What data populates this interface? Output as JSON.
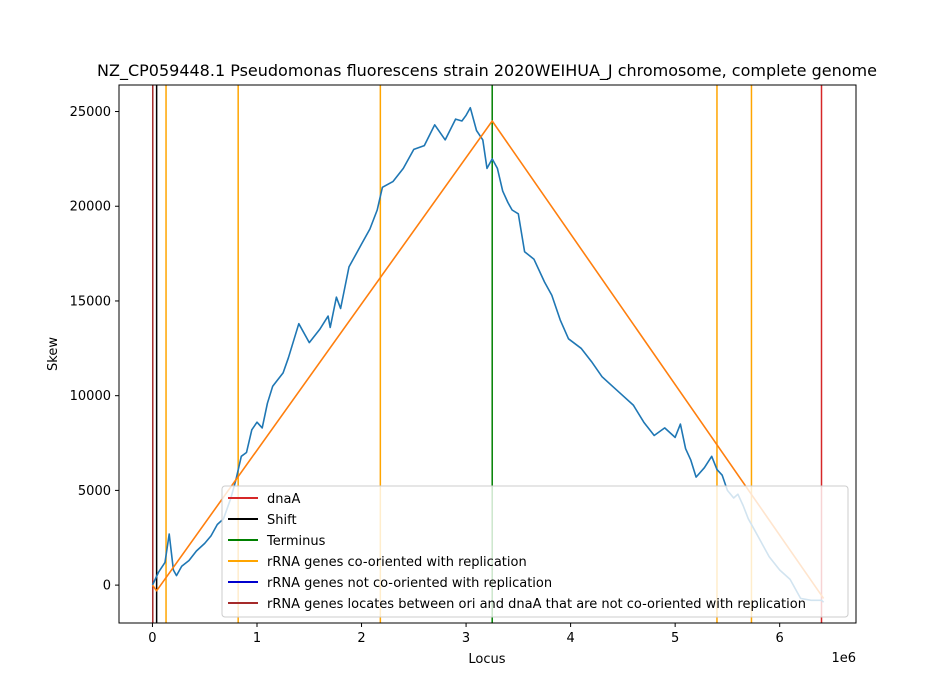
{
  "chart_data": {
    "type": "line",
    "title": "NZ_CP059448.1 Pseudomonas fluorescens strain 2020WEIHUA_J chromosome, complete genome",
    "xlabel": "Locus",
    "ylabel": "Skew",
    "x_offset_text": "1e6",
    "xlim": [
      -320000,
      6730000
    ],
    "ylim": [
      -2000,
      26400
    ],
    "x_ticks": [
      0,
      1000000,
      2000000,
      3000000,
      4000000,
      5000000,
      6000000
    ],
    "x_tick_labels": [
      "0",
      "1",
      "2",
      "3",
      "4",
      "5",
      "6"
    ],
    "y_ticks": [
      0,
      5000,
      10000,
      15000,
      20000,
      25000
    ],
    "y_tick_labels": [
      "0",
      "5000",
      "10000",
      "15000",
      "20000",
      "25000"
    ],
    "skew_series": {
      "color": "#1f77b4",
      "x": [
        0,
        60000,
        120000,
        160000,
        200000,
        230000,
        280000,
        350000,
        420000,
        500000,
        560000,
        620000,
        680000,
        750000,
        800000,
        850000,
        900000,
        950000,
        1000000,
        1050000,
        1100000,
        1150000,
        1250000,
        1300000,
        1400000,
        1500000,
        1600000,
        1680000,
        1700000,
        1760000,
        1800000,
        1880000,
        1920000,
        2000000,
        2080000,
        2150000,
        2200000,
        2300000,
        2400000,
        2500000,
        2600000,
        2700000,
        2800000,
        2900000,
        2960000,
        3000000,
        3040000,
        3100000,
        3160000,
        3200000,
        3250000,
        3300000,
        3350000,
        3400000,
        3440000,
        3500000,
        3560000,
        3650000,
        3750000,
        3820000,
        3900000,
        3980000,
        4100000,
        4200000,
        4300000,
        4400000,
        4500000,
        4600000,
        4700000,
        4800000,
        4900000,
        5000000,
        5050000,
        5100000,
        5150000,
        5200000,
        5280000,
        5350000,
        5400000,
        5450000,
        5500000,
        5560000,
        5600000,
        5650000,
        5700000,
        5750000,
        5800000,
        5900000,
        6000000,
        6100000,
        6200000,
        6300000,
        6400000,
        6420000
      ],
      "y": [
        0,
        700,
        1200,
        2700,
        800,
        500,
        1000,
        1300,
        1800,
        2200,
        2600,
        3200,
        3500,
        4600,
        5600,
        6800,
        7000,
        8200,
        8600,
        8300,
        9600,
        10500,
        11200,
        12000,
        13800,
        12800,
        13500,
        14200,
        13600,
        15200,
        14600,
        16800,
        17200,
        18000,
        18800,
        19800,
        21000,
        21300,
        22000,
        23000,
        23200,
        24300,
        23500,
        24600,
        24500,
        24800,
        25200,
        24000,
        23500,
        22000,
        22500,
        22000,
        20800,
        20200,
        19800,
        19600,
        17600,
        17200,
        16000,
        15300,
        14000,
        13000,
        12500,
        11800,
        11000,
        10500,
        10000,
        9500,
        8600,
        7900,
        8300,
        7800,
        8500,
        7200,
        6600,
        5700,
        6200,
        6800,
        6100,
        5800,
        5000,
        4600,
        4800,
        4200,
        3500,
        3000,
        2500,
        1500,
        800,
        300,
        -700,
        -800,
        -800,
        -900
      ]
    },
    "fit_series": {
      "color": "#ff7f0e",
      "x": [
        0,
        40000,
        3250000,
        6420000
      ],
      "y": [
        0,
        -300,
        24500,
        -700
      ]
    },
    "vlines": [
      {
        "x": 6400000,
        "color": "#d62728",
        "series": "dnaA"
      },
      {
        "x": 40000,
        "color": "#000000",
        "series": "Shift"
      },
      {
        "x": 3250000,
        "color": "#008000",
        "series": "Terminus"
      },
      {
        "x": 130000,
        "color": "#ffa500",
        "series": "rRNA genes co-oriented with replication"
      },
      {
        "x": 820000,
        "color": "#ffa500",
        "series": "rRNA genes co-oriented with replication"
      },
      {
        "x": 2180000,
        "color": "#ffa500",
        "series": "rRNA genes co-oriented with replication"
      },
      {
        "x": 5400000,
        "color": "#ffa500",
        "series": "rRNA genes co-oriented with replication"
      },
      {
        "x": 5730000,
        "color": "#ffa500",
        "series": "rRNA genes co-oriented with replication"
      },
      {
        "x": 3000,
        "color": "#a52a2a",
        "series": "rRNA genes locates between ori and dnaA that are not co-oriented with replication"
      }
    ],
    "legend": {
      "placement": "lower-right",
      "entries": [
        {
          "label": "dnaA",
          "color": "#d62728"
        },
        {
          "label": "Shift",
          "color": "#000000"
        },
        {
          "label": "Terminus",
          "color": "#008000"
        },
        {
          "label": "rRNA genes co-oriented with replication",
          "color": "#ffa500"
        },
        {
          "label": "rRNA genes not co-oriented with replication",
          "color": "#0000cd"
        },
        {
          "label": "rRNA genes locates between ori and dnaA that are not co-oriented with replication",
          "color": "#a52a2a"
        }
      ]
    }
  }
}
